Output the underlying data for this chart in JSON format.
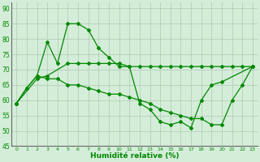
{
  "xlabel": "Humidité relative (%)",
  "background_color": "#d4edd9",
  "grid_color": "#b0c8b0",
  "line_color": "#008800",
  "xlim": [
    -0.5,
    23.5
  ],
  "ylim": [
    45,
    92
  ],
  "yticks": [
    45,
    50,
    55,
    60,
    65,
    70,
    75,
    80,
    85,
    90
  ],
  "xticks": [
    0,
    1,
    2,
    3,
    4,
    5,
    6,
    7,
    8,
    9,
    10,
    11,
    12,
    13,
    14,
    15,
    16,
    17,
    18,
    19,
    20,
    21,
    22,
    23
  ],
  "s1_x": [
    0,
    1,
    2,
    3,
    4,
    5,
    6,
    7,
    8,
    9,
    10,
    11,
    12,
    13,
    14,
    15,
    16,
    17,
    18,
    19,
    20,
    23
  ],
  "s1_y": [
    59,
    64,
    68,
    79,
    72,
    85,
    85,
    83,
    77,
    74,
    71,
    71,
    59,
    57,
    53,
    52,
    53,
    51,
    60,
    65,
    66,
    71
  ],
  "s2_x": [
    0,
    2,
    3,
    5,
    6,
    7,
    8,
    9,
    10,
    11,
    12,
    13,
    14,
    15,
    16,
    17,
    18,
    19,
    20,
    21,
    22,
    23
  ],
  "s2_y": [
    59,
    67,
    68,
    72,
    72,
    72,
    72,
    72,
    72,
    71,
    71,
    71,
    71,
    71,
    71,
    71,
    71,
    71,
    71,
    71,
    71,
    71
  ],
  "s3_x": [
    0,
    1,
    2,
    3,
    4,
    5,
    6,
    7,
    8,
    9,
    10,
    11,
    12,
    13,
    14,
    15,
    16,
    17,
    18,
    19,
    20,
    21,
    22,
    23
  ],
  "s3_y": [
    59,
    64,
    68,
    67,
    67,
    65,
    65,
    64,
    63,
    62,
    62,
    61,
    60,
    59,
    57,
    56,
    55,
    54,
    54,
    52,
    52,
    60,
    65,
    71
  ]
}
